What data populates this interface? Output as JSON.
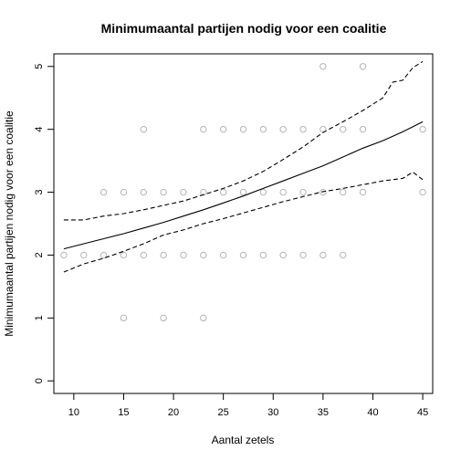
{
  "chart_data": {
    "type": "scatter",
    "title": "Minimumaantal partijen nodig voor een coalitie",
    "xlabel": "Aantal zetels",
    "ylabel": "Minimumaantal partijen nodig voor een coalitie",
    "xlim": [
      8,
      46
    ],
    "ylim": [
      -0.2,
      5.2
    ],
    "xticks": [
      10,
      15,
      20,
      25,
      30,
      35,
      40,
      45
    ],
    "yticks": [
      0,
      1,
      2,
      3,
      4,
      5
    ],
    "grid": false,
    "points": [
      {
        "x": 9,
        "y": 2
      },
      {
        "x": 11,
        "y": 2
      },
      {
        "x": 13,
        "y": 2
      },
      {
        "x": 15,
        "y": 2
      },
      {
        "x": 17,
        "y": 2
      },
      {
        "x": 19,
        "y": 2
      },
      {
        "x": 21,
        "y": 2
      },
      {
        "x": 23,
        "y": 2
      },
      {
        "x": 25,
        "y": 2
      },
      {
        "x": 27,
        "y": 2
      },
      {
        "x": 29,
        "y": 2
      },
      {
        "x": 31,
        "y": 2
      },
      {
        "x": 33,
        "y": 2
      },
      {
        "x": 35,
        "y": 2
      },
      {
        "x": 37,
        "y": 2
      },
      {
        "x": 13,
        "y": 3
      },
      {
        "x": 15,
        "y": 3
      },
      {
        "x": 17,
        "y": 3
      },
      {
        "x": 19,
        "y": 3
      },
      {
        "x": 21,
        "y": 3
      },
      {
        "x": 23,
        "y": 3
      },
      {
        "x": 25,
        "y": 3
      },
      {
        "x": 27,
        "y": 3
      },
      {
        "x": 29,
        "y": 3
      },
      {
        "x": 31,
        "y": 3
      },
      {
        "x": 33,
        "y": 3
      },
      {
        "x": 35,
        "y": 3
      },
      {
        "x": 37,
        "y": 3
      },
      {
        "x": 39,
        "y": 3
      },
      {
        "x": 45,
        "y": 3
      },
      {
        "x": 17,
        "y": 4
      },
      {
        "x": 23,
        "y": 4
      },
      {
        "x": 25,
        "y": 4
      },
      {
        "x": 27,
        "y": 4
      },
      {
        "x": 29,
        "y": 4
      },
      {
        "x": 31,
        "y": 4
      },
      {
        "x": 33,
        "y": 4
      },
      {
        "x": 35,
        "y": 4
      },
      {
        "x": 37,
        "y": 4
      },
      {
        "x": 39,
        "y": 4
      },
      {
        "x": 45,
        "y": 4
      },
      {
        "x": 35,
        "y": 5
      },
      {
        "x": 39,
        "y": 5
      },
      {
        "x": 15,
        "y": 1
      },
      {
        "x": 19,
        "y": 1
      },
      {
        "x": 23,
        "y": 1
      }
    ],
    "series": [
      {
        "x": [
          9,
          11,
          13,
          15,
          17,
          19,
          21,
          23,
          25,
          27,
          29,
          31,
          33,
          35,
          37,
          39,
          41,
          43,
          45
        ],
        "values": [
          2.1,
          2.18,
          2.26,
          2.34,
          2.43,
          2.52,
          2.62,
          2.72,
          2.83,
          2.94,
          3.06,
          3.18,
          3.3,
          3.42,
          3.56,
          3.7,
          3.82,
          3.96,
          4.12
        ]
      },
      {
        "x": [
          9,
          11,
          13,
          15,
          17,
          19,
          21,
          23,
          25,
          27,
          29,
          31,
          33,
          35,
          37,
          39,
          41,
          42,
          43,
          44,
          45
        ],
        "values": [
          2.56,
          2.56,
          2.62,
          2.66,
          2.72,
          2.79,
          2.86,
          2.96,
          3.06,
          3.18,
          3.33,
          3.52,
          3.72,
          3.95,
          4.12,
          4.3,
          4.5,
          4.75,
          4.78,
          4.98,
          5.08
        ]
      },
      {
        "x": [
          9,
          11,
          13,
          15,
          17,
          19,
          21,
          23,
          25,
          27,
          29,
          31,
          33,
          35,
          37,
          39,
          41,
          43,
          44,
          45
        ],
        "values": [
          1.73,
          1.86,
          1.95,
          2.06,
          2.18,
          2.32,
          2.4,
          2.5,
          2.58,
          2.67,
          2.76,
          2.85,
          2.93,
          3.01,
          3.06,
          3.12,
          3.18,
          3.22,
          3.32,
          3.2
        ]
      }
    ],
    "colors": {
      "points": "#b3b3b3",
      "fit": "#000000",
      "band": "#000000"
    }
  }
}
